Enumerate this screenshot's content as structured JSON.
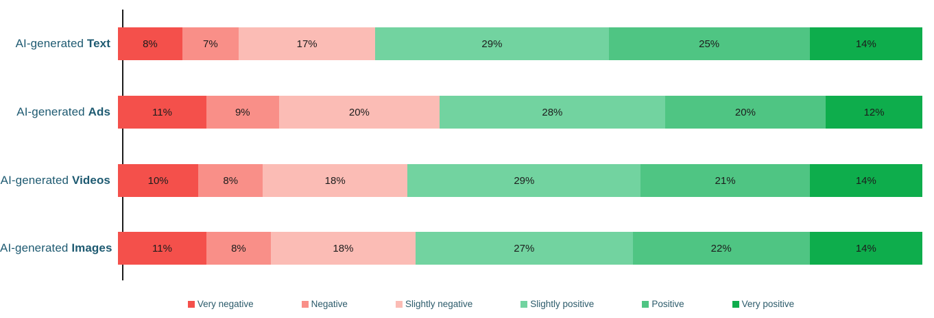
{
  "chart_data": {
    "type": "bar",
    "orientation": "horizontal",
    "stacked": true,
    "value_suffix": "%",
    "xlim": [
      0,
      100
    ],
    "grid": false,
    "legend_position": "bottom",
    "categories": [
      {
        "prefix": "AI-generated",
        "bold": "Text"
      },
      {
        "prefix": "AI-generated",
        "bold": "Ads"
      },
      {
        "prefix": "AI-generated",
        "bold": "Videos"
      },
      {
        "prefix": "AI-generated",
        "bold": "Images"
      }
    ],
    "series": [
      {
        "name": "Very negative",
        "color": "#f4504b",
        "values": [
          8,
          11,
          10,
          11
        ]
      },
      {
        "name": "Negative",
        "color": "#f98f88",
        "values": [
          7,
          9,
          8,
          8
        ]
      },
      {
        "name": "Slightly negative",
        "color": "#fbbcb5",
        "values": [
          17,
          20,
          18,
          18
        ]
      },
      {
        "name": "Slightly positive",
        "color": "#72d3a0",
        "values": [
          29,
          28,
          29,
          27
        ]
      },
      {
        "name": "Positive",
        "color": "#4fc583",
        "values": [
          25,
          20,
          21,
          22
        ]
      },
      {
        "name": "Very positive",
        "color": "#0ead4c",
        "values": [
          14,
          12,
          14,
          14
        ]
      }
    ]
  },
  "styles": {
    "label_color": "#1e5a71",
    "legend_text_color": "#2b5a6a",
    "value_text_color": "#1c1c1c",
    "axis_color": "#1a1a1a"
  }
}
